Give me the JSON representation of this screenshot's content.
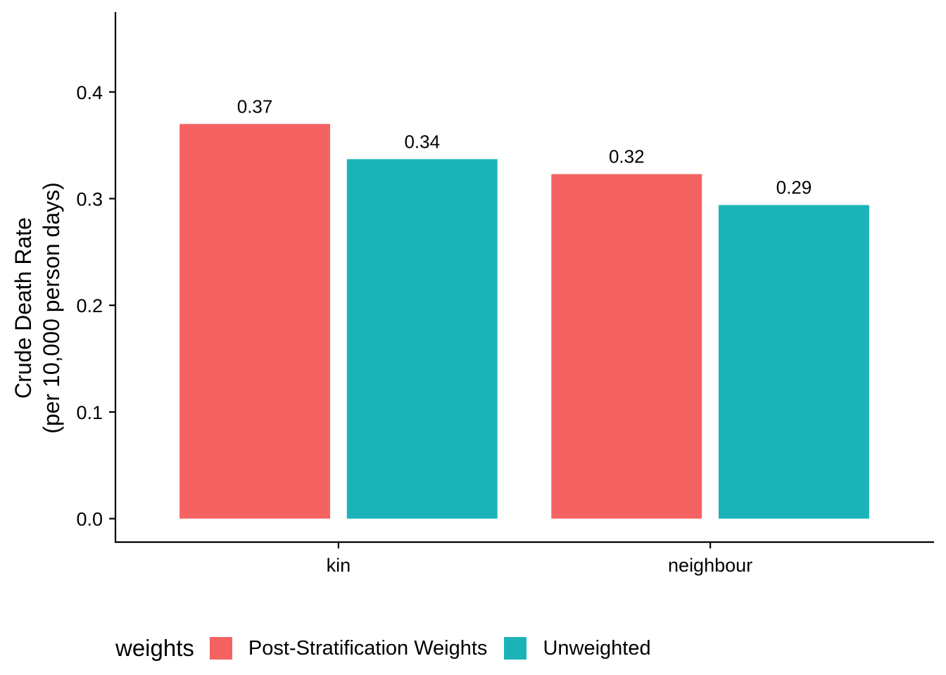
{
  "chart_data": {
    "type": "bar",
    "categories": [
      "kin",
      "neighbour"
    ],
    "series": [
      {
        "name": "Post-Stratification Weights",
        "values": [
          0.37,
          0.323
        ],
        "labels": [
          "0.37",
          "0.32"
        ],
        "color": "#F46362"
      },
      {
        "name": "Unweighted",
        "values": [
          0.337,
          0.294
        ],
        "labels": [
          "0.34",
          "0.29"
        ],
        "color": "#1AB4B8"
      }
    ],
    "ylabel": [
      "Crude Death Rate",
      "(per 10,000 person days)"
    ],
    "xlabel": "",
    "ylim": [
      -0.022,
      0.475
    ],
    "yticks": [
      "0.0",
      "0.1",
      "0.2",
      "0.3",
      "0.4"
    ],
    "ytick_values": [
      0,
      0.1,
      0.2,
      0.3,
      0.4
    ],
    "grid": false,
    "legend": {
      "title": "weights",
      "position": "bottom"
    }
  }
}
